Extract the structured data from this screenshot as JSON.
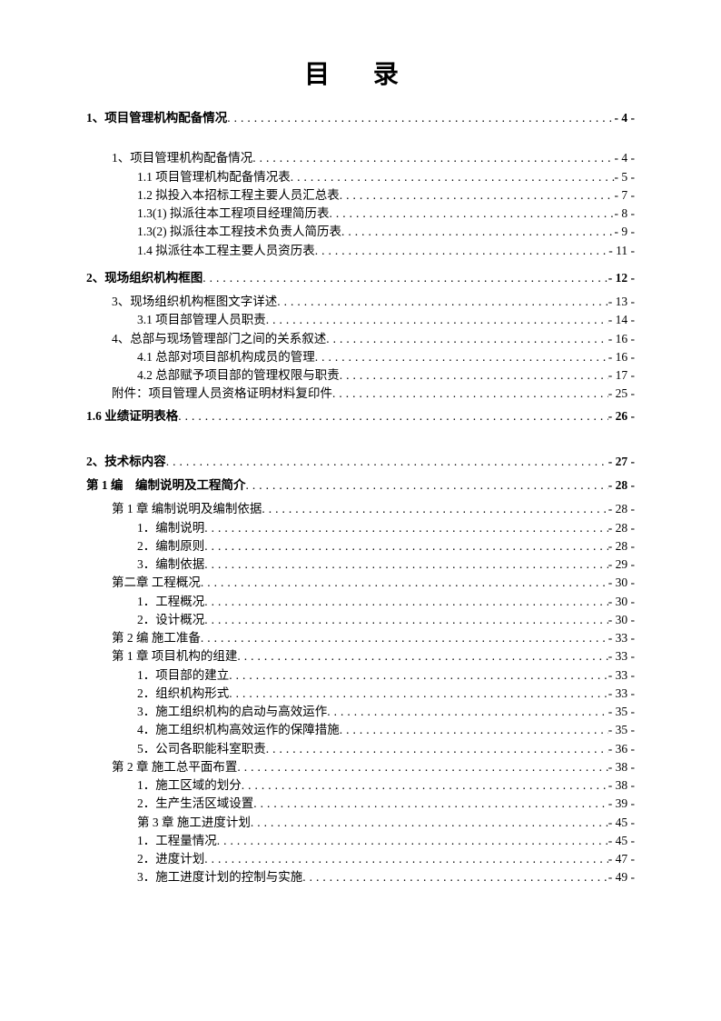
{
  "title": "目 录",
  "colors": {
    "text": "#000000",
    "background": "#ffffff"
  },
  "typography": {
    "title_fontsize": 28,
    "body_fontsize": 13.5,
    "title_font": "SimHei",
    "body_font": "SimSun"
  },
  "entries": [
    {
      "text": "1、项目管理机构配备情况",
      "page": "- 4 -",
      "indent": 0,
      "bold": true,
      "spacer_after": "large"
    },
    {
      "text": "1、项目管理机构配备情况",
      "page": "- 4 -",
      "indent": 1,
      "bold": false
    },
    {
      "text": "1.1 项目管理机构配备情况表",
      "page": "- 5 -",
      "indent": 2,
      "bold": false
    },
    {
      "text": "1.2 拟投入本招标工程主要人员汇总表",
      "page": "- 7 -",
      "indent": 2,
      "bold": false
    },
    {
      "text": "1.3(1) 拟派往本工程项目经理简历表",
      "page": "- 8 -",
      "indent": 2,
      "bold": false
    },
    {
      "text": "1.3(2) 拟派往本工程技术负责人简历表",
      "page": "- 9 -",
      "indent": 2,
      "bold": false
    },
    {
      "text": "1.4 拟派往本工程主要人员资历表",
      "page": "- 11 -",
      "indent": 2,
      "bold": false,
      "spacer_after": "small"
    },
    {
      "text": "2、现场组织机构框图",
      "page": "- 12 -",
      "indent": 0,
      "bold": true,
      "section_gap": true
    },
    {
      "text": "3、现场组织机构框图文字详述",
      "page": "- 13 -",
      "indent": 1,
      "bold": false
    },
    {
      "text": "3.1 项目部管理人员职责",
      "page": "- 14 -",
      "indent": 2,
      "bold": false
    },
    {
      "text": "4、总部与现场管理部门之间的关系叙述",
      "page": "- 16 -",
      "indent": 1,
      "bold": false
    },
    {
      "text": "4.1 总部对项目部机构成员的管理",
      "page": "- 16 -",
      "indent": 2,
      "bold": false
    },
    {
      "text": "4.2 总部赋予项目部的管理权限与职责",
      "page": "- 17 -",
      "indent": 2,
      "bold": false
    },
    {
      "text": "附件：项目管理人员资格证明材料复印件",
      "page": "- 25 -",
      "indent": 1,
      "bold": false,
      "spacer_after": "small"
    },
    {
      "text": "1.6 业绩证明表格",
      "page": "- 26 -",
      "indent": 0,
      "bold": true,
      "spacer_after": "large"
    },
    {
      "text": "2、技术标内容",
      "page": "- 27 -",
      "indent": 0,
      "bold": true,
      "section_gap": true
    },
    {
      "text": "第 1 编　编制说明及工程简介",
      "page": "- 28 -",
      "indent": 0,
      "bold": true,
      "section_gap": true
    },
    {
      "text": "第 1 章 编制说明及编制依据",
      "page": "- 28 -",
      "indent": 1,
      "bold": false
    },
    {
      "text": "1．编制说明",
      "page": "- 28 -",
      "indent": 2,
      "bold": false
    },
    {
      "text": "2．编制原则",
      "page": "- 28 -",
      "indent": 2,
      "bold": false
    },
    {
      "text": "3．编制依据",
      "page": "- 29 -",
      "indent": 2,
      "bold": false
    },
    {
      "text": "第二章 工程概况",
      "page": "- 30 -",
      "indent": 1,
      "bold": false
    },
    {
      "text": "1．工程概况",
      "page": "- 30 -",
      "indent": 2,
      "bold": false
    },
    {
      "text": "2．设计概况",
      "page": "- 30 -",
      "indent": 2,
      "bold": false
    },
    {
      "text": "第 2 编 施工准备",
      "page": "- 33 -",
      "indent": 1,
      "bold": false
    },
    {
      "text": "第 1 章 项目机构的组建",
      "page": "- 33 -",
      "indent": 1,
      "bold": false
    },
    {
      "text": "1．项目部的建立",
      "page": "- 33 -",
      "indent": 2,
      "bold": false
    },
    {
      "text": "2．组织机构形式",
      "page": "- 33 -",
      "indent": 2,
      "bold": false
    },
    {
      "text": "3．施工组织机构的启动与高效运作",
      "page": "- 35 -",
      "indent": 2,
      "bold": false
    },
    {
      "text": "4．施工组织机构高效运作的保障措施",
      "page": "- 35 -",
      "indent": 2,
      "bold": false
    },
    {
      "text": "5．公司各职能科室职责",
      "page": "- 36 -",
      "indent": 2,
      "bold": false
    },
    {
      "text": "第 2 章 施工总平面布置",
      "page": "- 38 -",
      "indent": 1,
      "bold": false
    },
    {
      "text": "1．施工区域的划分",
      "page": "- 38 -",
      "indent": 2,
      "bold": false
    },
    {
      "text": "2．生产生活区域设置",
      "page": "- 39 -",
      "indent": 2,
      "bold": false
    },
    {
      "text": "第 3 章 施工进度计划",
      "page": "- 45 -",
      "indent": 2,
      "bold": false
    },
    {
      "text": "1．工程量情况",
      "page": "- 45 -",
      "indent": 2,
      "bold": false
    },
    {
      "text": "2．进度计划",
      "page": "- 47 -",
      "indent": 2,
      "bold": false
    },
    {
      "text": "3．施工进度计划的控制与实施",
      "page": "- 49 -",
      "indent": 2,
      "bold": false
    }
  ]
}
